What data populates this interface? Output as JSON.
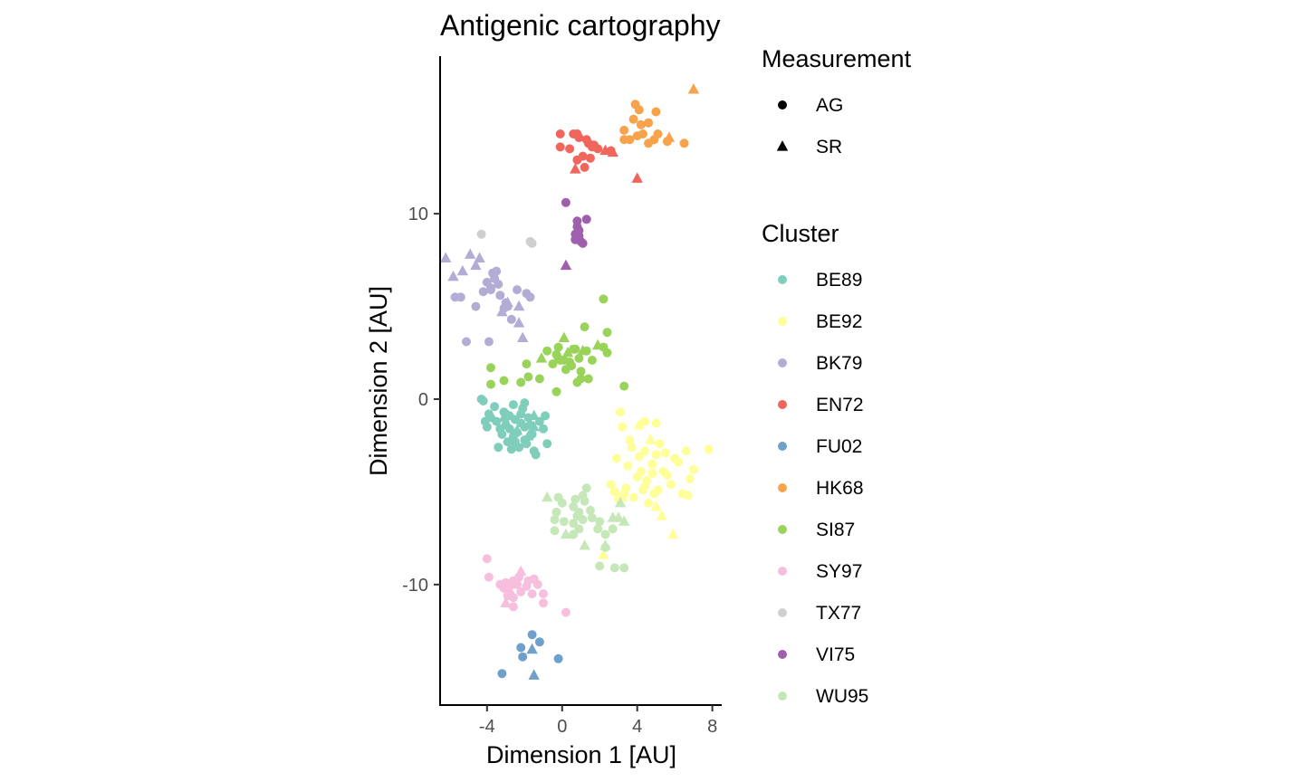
{
  "chart_data": {
    "type": "scatter",
    "title": "Antigenic cartography",
    "xlabel": "Dimension 1 [AU]",
    "ylabel": "Dimension 2 [AU]",
    "xlim": [
      -6.5,
      8.5
    ],
    "ylim": [
      -16.5,
      18.5
    ],
    "xticks": [
      -4,
      0,
      4,
      8
    ],
    "yticks": [
      -10,
      0,
      10
    ],
    "grid": false,
    "legend_position": "right",
    "shape_legend": {
      "title": "Measurement",
      "items": [
        {
          "label": "AG",
          "shape": "circle"
        },
        {
          "label": "SR",
          "shape": "triangle"
        }
      ]
    },
    "color_legend": {
      "title": "Cluster",
      "items": [
        {
          "label": "BE89",
          "color": "#7fcdbb"
        },
        {
          "label": "BE92",
          "color": "#ffff99"
        },
        {
          "label": "BK79",
          "color": "#b3acd4"
        },
        {
          "label": "EN72",
          "color": "#f0665c"
        },
        {
          "label": "FU02",
          "color": "#6fa0cc"
        },
        {
          "label": "HK68",
          "color": "#f6a34b"
        },
        {
          "label": "SI87",
          "color": "#9ad35a"
        },
        {
          "label": "SY97",
          "color": "#f7bfdd"
        },
        {
          "label": "TX77",
          "color": "#cfcfcf"
        },
        {
          "label": "VI75",
          "color": "#a05fae"
        },
        {
          "label": "WU95",
          "color": "#c6e8b9"
        }
      ]
    },
    "series": [
      {
        "name": "BE89",
        "AG": [
          [
            -2.5,
            -1.1
          ],
          [
            -2.2,
            -0.8
          ],
          [
            -3.0,
            -1.4
          ],
          [
            -2.8,
            -0.9
          ],
          [
            -2.0,
            -1.5
          ],
          [
            -1.8,
            -1.0
          ],
          [
            -3.3,
            -1.6
          ],
          [
            -2.6,
            -2.0
          ],
          [
            -2.4,
            -1.8
          ],
          [
            -3.5,
            -1.2
          ],
          [
            -2.1,
            -0.5
          ],
          [
            -1.6,
            -1.9
          ],
          [
            -3.1,
            -0.7
          ],
          [
            -2.9,
            -2.3
          ],
          [
            -2.3,
            -2.6
          ],
          [
            -1.9,
            -2.4
          ],
          [
            -3.6,
            -0.4
          ],
          [
            -4.2,
            -0.1
          ],
          [
            -4.3,
            0.0
          ],
          [
            -3.8,
            -1.0
          ],
          [
            -4.0,
            -1.5
          ],
          [
            -3.4,
            -2.6
          ],
          [
            -2.7,
            -2.7
          ],
          [
            -1.5,
            -2.8
          ],
          [
            -1.4,
            -3.0
          ],
          [
            -1.0,
            -1.6
          ],
          [
            -0.8,
            -2.4
          ],
          [
            -1.2,
            -1.2
          ],
          [
            -0.9,
            -0.9
          ],
          [
            -2.0,
            -0.2
          ],
          [
            -2.6,
            -0.3
          ],
          [
            -3.2,
            -1.9
          ],
          [
            -4.1,
            -1.2
          ],
          [
            -2.2,
            -1.3
          ],
          [
            -1.7,
            -1.4
          ],
          [
            -2.5,
            -2.3
          ],
          [
            -3.0,
            -0.8
          ],
          [
            -2.0,
            -2.2
          ],
          [
            -2.8,
            -1.6
          ],
          [
            -3.9,
            -0.8
          ]
        ],
        "SR": [
          [
            -1.5,
            -1.5
          ],
          [
            -2.4,
            -1.7
          ],
          [
            -3.1,
            -1.0
          ],
          [
            -1.8,
            -2.0
          ],
          [
            -1.5,
            -0.9
          ]
        ]
      },
      {
        "name": "BE92",
        "AG": [
          [
            3.2,
            -1.5
          ],
          [
            3.6,
            -2.2
          ],
          [
            4.4,
            -2.8
          ],
          [
            4.8,
            -3.5
          ],
          [
            5.2,
            -2.4
          ],
          [
            4.0,
            -4.2
          ],
          [
            3.4,
            -4.8
          ],
          [
            2.8,
            -5.0
          ],
          [
            4.6,
            -5.6
          ],
          [
            5.6,
            -4.1
          ],
          [
            6.2,
            -3.4
          ],
          [
            6.6,
            -2.8
          ],
          [
            7.0,
            -3.8
          ],
          [
            5.0,
            -3.0
          ],
          [
            4.2,
            -3.9
          ],
          [
            3.8,
            -5.3
          ],
          [
            3.0,
            -5.4
          ],
          [
            2.6,
            -4.6
          ],
          [
            4.4,
            -1.2
          ],
          [
            5.0,
            -1.3
          ],
          [
            5.4,
            -3.9
          ],
          [
            5.8,
            -4.6
          ],
          [
            6.4,
            -5.1
          ],
          [
            6.8,
            -4.3
          ],
          [
            3.1,
            -0.7
          ],
          [
            5.1,
            -4.9
          ],
          [
            4.5,
            -4.4
          ],
          [
            4.1,
            -3.1
          ],
          [
            3.5,
            -3.6
          ],
          [
            2.9,
            -3.2
          ],
          [
            6.0,
            -3.2
          ],
          [
            3.7,
            -2.6
          ],
          [
            4.9,
            -5.1
          ],
          [
            5.5,
            -2.9
          ],
          [
            4.3,
            -4.9
          ],
          [
            3.3,
            -5.1
          ],
          [
            4.8,
            -4.0
          ],
          [
            7.8,
            -2.7
          ],
          [
            6.7,
            -5.2
          ]
        ],
        "SR": [
          [
            4.1,
            -1.4
          ],
          [
            4.7,
            -2.2
          ],
          [
            5.3,
            -6.3
          ],
          [
            5.9,
            -7.3
          ],
          [
            2.2,
            -8.4
          ],
          [
            3.2,
            -5.3
          ],
          [
            4.4,
            -4.6
          ],
          [
            5.0,
            -5.8
          ]
        ]
      },
      {
        "name": "BK79",
        "AG": [
          [
            -3.8,
            6.0
          ],
          [
            -4.0,
            6.3
          ],
          [
            -3.5,
            6.9
          ],
          [
            -3.6,
            6.5
          ],
          [
            -4.2,
            5.8
          ],
          [
            -3.3,
            5.6
          ],
          [
            -3.1,
            4.9
          ],
          [
            -2.4,
            5.9
          ],
          [
            -1.7,
            5.5
          ],
          [
            -2.9,
            5.0
          ],
          [
            -4.6,
            5.0
          ],
          [
            -5.4,
            5.5
          ],
          [
            -5.7,
            5.5
          ],
          [
            -5.1,
            3.1
          ],
          [
            -3.9,
            3.1
          ],
          [
            -2.7,
            4.3
          ],
          [
            -1.9,
            5.7
          ],
          [
            -3.7,
            6.8
          ],
          [
            -3.4,
            6.2
          ],
          [
            -3.0,
            5.2
          ],
          [
            -3.8,
            5.9
          ]
        ],
        "SR": [
          [
            -6.2,
            7.6
          ],
          [
            -5.8,
            6.6
          ],
          [
            -5.3,
            6.9
          ],
          [
            -4.9,
            7.8
          ],
          [
            -4.4,
            7.6
          ],
          [
            -4.6,
            7.2
          ],
          [
            -3.2,
            4.7
          ],
          [
            -2.9,
            5.2
          ],
          [
            -2.3,
            5.0
          ],
          [
            -2.3,
            4.1
          ],
          [
            -2.1,
            3.3
          ]
        ]
      },
      {
        "name": "EN72",
        "AG": [
          [
            -0.1,
            14.3
          ],
          [
            0.6,
            14.3
          ],
          [
            0.9,
            14.1
          ],
          [
            1.3,
            14.0
          ],
          [
            1.6,
            13.6
          ],
          [
            0.4,
            13.5
          ],
          [
            -0.1,
            13.6
          ],
          [
            1.1,
            13.1
          ],
          [
            1.5,
            13.0
          ],
          [
            0.8,
            12.9
          ],
          [
            1.9,
            13.5
          ],
          [
            1.4,
            13.8
          ],
          [
            1.2,
            12.5
          ],
          [
            2.6,
            13.4
          ],
          [
            0.8,
            14.3
          ],
          [
            1.7,
            13.7
          ]
        ],
        "SR": [
          [
            0.7,
            12.4
          ],
          [
            2.3,
            13.4
          ],
          [
            2.7,
            13.3
          ],
          [
            4.0,
            11.9
          ]
        ]
      },
      {
        "name": "FU02",
        "AG": [
          [
            -1.6,
            -12.7
          ],
          [
            -2.2,
            -13.4
          ],
          [
            -2.1,
            -13.9
          ],
          [
            -1.2,
            -13.1
          ],
          [
            -0.2,
            -14.0
          ],
          [
            -3.2,
            -14.8
          ]
        ],
        "SR": [
          [
            -1.6,
            -13.5
          ],
          [
            -1.5,
            -14.9
          ]
        ]
      },
      {
        "name": "HK68",
        "AG": [
          [
            3.9,
            15.9
          ],
          [
            4.1,
            15.6
          ],
          [
            5.0,
            15.5
          ],
          [
            4.2,
            14.8
          ],
          [
            4.6,
            14.9
          ],
          [
            3.8,
            15.1
          ],
          [
            3.3,
            14.5
          ],
          [
            4.3,
            14.3
          ],
          [
            5.1,
            14.3
          ],
          [
            5.6,
            13.9
          ],
          [
            3.6,
            14.0
          ],
          [
            4.0,
            14.2
          ],
          [
            4.6,
            13.8
          ],
          [
            3.3,
            14.0
          ],
          [
            6.5,
            13.8
          ],
          [
            4.9,
            14.0
          ]
        ],
        "SR": [
          [
            7.0,
            16.7
          ],
          [
            5.7,
            14.1
          ]
        ]
      },
      {
        "name": "SI87",
        "AG": [
          [
            -0.8,
            2.6
          ],
          [
            -0.3,
            2.4
          ],
          [
            0.1,
            2.1
          ],
          [
            -0.2,
            2.8
          ],
          [
            0.6,
            2.7
          ],
          [
            0.9,
            2.2
          ],
          [
            1.3,
            2.6
          ],
          [
            0.5,
            1.8
          ],
          [
            0.2,
            1.6
          ],
          [
            -0.1,
            2.1
          ],
          [
            0.4,
            2.0
          ],
          [
            1.0,
            1.5
          ],
          [
            1.6,
            2.1
          ],
          [
            2.2,
            2.8
          ],
          [
            2.4,
            2.5
          ],
          [
            2.2,
            5.4
          ],
          [
            1.2,
            3.9
          ],
          [
            1.0,
            1.1
          ],
          [
            0.8,
            0.9
          ],
          [
            1.4,
            1.1
          ],
          [
            3.3,
            0.7
          ],
          [
            -0.5,
            1.9
          ],
          [
            -1.2,
            1.1
          ],
          [
            -1.9,
            1.9
          ],
          [
            -1.8,
            1.2
          ],
          [
            -2.2,
            0.9
          ],
          [
            -3.1,
            1.0
          ],
          [
            -3.8,
            0.8
          ],
          [
            -3.8,
            1.7
          ],
          [
            -0.3,
            0.4
          ],
          [
            0.7,
            2.7
          ],
          [
            -0.2,
            2.2
          ],
          [
            2.4,
            3.6
          ]
        ],
        "SR": [
          [
            -1.1,
            2.2
          ],
          [
            0.1,
            3.3
          ],
          [
            1.1,
            2.6
          ],
          [
            1.9,
            2.9
          ],
          [
            0.3,
            2.5
          ]
        ]
      },
      {
        "name": "SY97",
        "AG": [
          [
            -4.0,
            -8.6
          ],
          [
            -3.9,
            -9.6
          ],
          [
            -3.3,
            -10.0
          ],
          [
            -3.0,
            -9.9
          ],
          [
            -2.6,
            -9.8
          ],
          [
            -2.3,
            -9.6
          ],
          [
            -1.9,
            -10.1
          ],
          [
            -1.6,
            -10.5
          ],
          [
            -1.3,
            -10.0
          ],
          [
            -1.0,
            -10.5
          ],
          [
            -1.0,
            -11.0
          ],
          [
            -2.6,
            -11.2
          ],
          [
            -2.9,
            -10.6
          ],
          [
            -2.2,
            -10.4
          ],
          [
            -3.1,
            -10.2
          ],
          [
            -2.6,
            -10.7
          ],
          [
            -1.8,
            -9.8
          ],
          [
            0.2,
            -11.5
          ],
          [
            -1.5,
            -9.7
          ],
          [
            -2.4,
            -10.0
          ]
        ],
        "SR": [
          [
            -2.2,
            -9.3
          ],
          [
            -2.6,
            -10.0
          ],
          [
            -3.0,
            -11.0
          ],
          [
            -2.8,
            -10.3
          ]
        ]
      },
      {
        "name": "TX77",
        "AG": [
          [
            -4.3,
            8.9
          ],
          [
            -1.7,
            8.5
          ],
          [
            -1.6,
            8.4
          ]
        ],
        "SR": []
      },
      {
        "name": "VI75",
        "AG": [
          [
            0.2,
            10.6
          ],
          [
            1.3,
            9.7
          ],
          [
            0.8,
            9.6
          ],
          [
            0.8,
            9.3
          ],
          [
            0.7,
            8.9
          ],
          [
            0.9,
            8.8
          ],
          [
            0.7,
            8.6
          ],
          [
            1.0,
            8.5
          ],
          [
            1.1,
            8.4
          ],
          [
            0.9,
            9.1
          ]
        ],
        "SR": [
          [
            0.2,
            7.2
          ]
        ]
      },
      {
        "name": "WU95",
        "AG": [
          [
            0.0,
            -5.6
          ],
          [
            0.6,
            -5.8
          ],
          [
            0.8,
            -6.3
          ],
          [
            1.2,
            -5.5
          ],
          [
            0.9,
            -6.1
          ],
          [
            1.5,
            -6.0
          ],
          [
            1.1,
            -5.2
          ],
          [
            1.3,
            -4.8
          ],
          [
            1.6,
            -6.4
          ],
          [
            2.0,
            -6.6
          ],
          [
            2.3,
            -7.3
          ],
          [
            2.7,
            -7.0
          ],
          [
            2.3,
            -8.0
          ],
          [
            0.9,
            -7.0
          ],
          [
            0.6,
            -6.7
          ],
          [
            1.1,
            -6.5
          ],
          [
            -0.3,
            -6.1
          ],
          [
            0.1,
            -6.6
          ],
          [
            0.6,
            -7.3
          ],
          [
            0.7,
            -5.4
          ],
          [
            -0.4,
            -7.1
          ],
          [
            -0.2,
            -5.3
          ],
          [
            1.9,
            -7.0
          ],
          [
            2.0,
            -9.0
          ],
          [
            2.8,
            -9.1
          ],
          [
            3.3,
            -9.1
          ],
          [
            -0.4,
            -6.5
          ]
        ],
        "SR": [
          [
            -0.8,
            -5.3
          ],
          [
            0.2,
            -7.3
          ],
          [
            1.2,
            -7.9
          ],
          [
            3.1,
            -5.6
          ],
          [
            2.7,
            -6.4
          ],
          [
            2.3,
            -7.9
          ],
          [
            3.3,
            -6.6
          ],
          [
            3.0,
            -6.4
          ]
        ]
      }
    ]
  }
}
